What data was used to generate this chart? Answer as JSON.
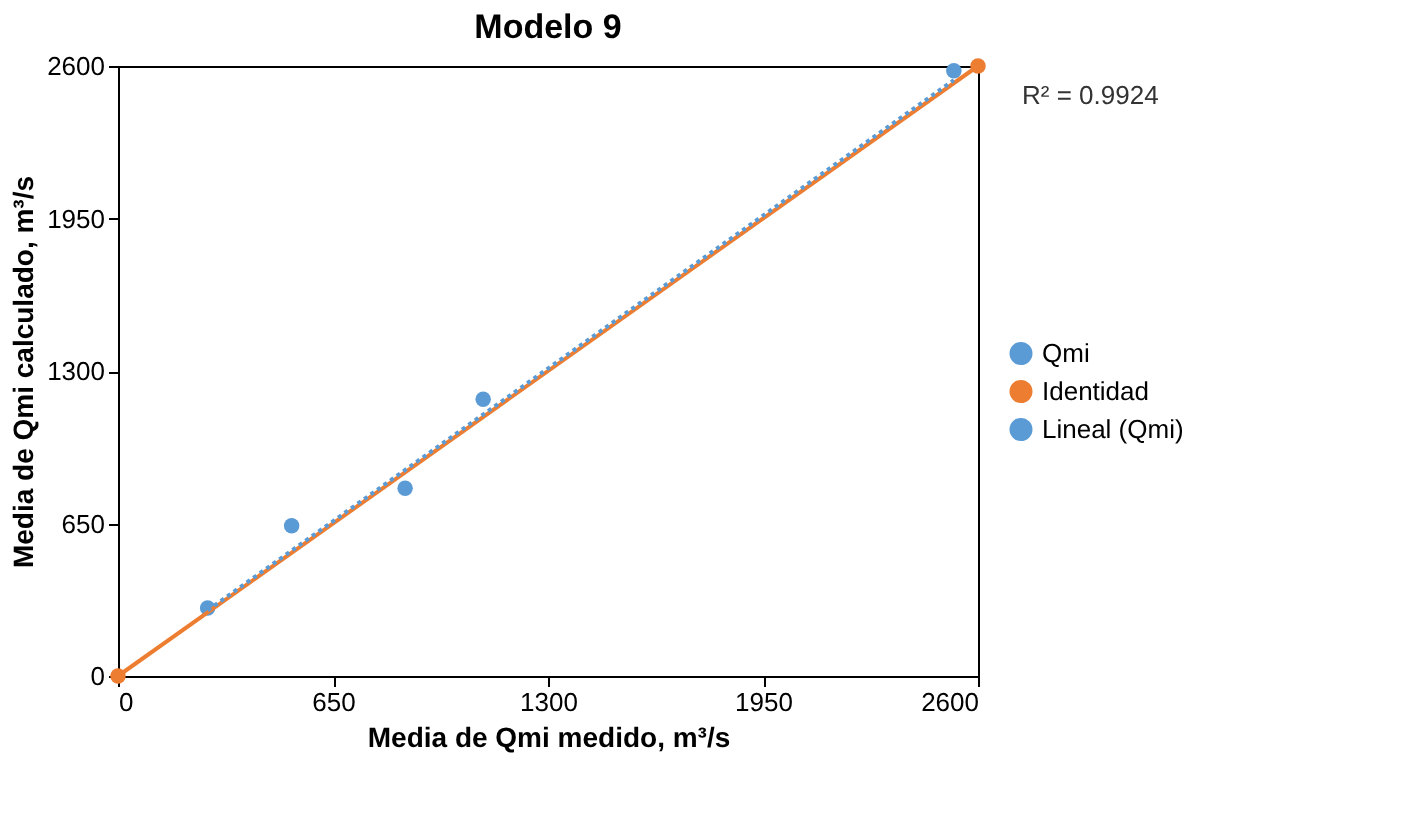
{
  "chart_data": {
    "type": "scatter",
    "title": "Modelo 9",
    "xlabel": "Media de Qmi medido, m³/s",
    "ylabel": "Media de Qmi calculado, m³/s",
    "xlim": [
      0,
      2600
    ],
    "ylim": [
      0,
      2600
    ],
    "xticks": [
      0,
      650,
      1300,
      1950,
      2600
    ],
    "yticks": [
      0,
      650,
      1300,
      1950,
      2600
    ],
    "annotations": [
      "R² = 0.9924"
    ],
    "legend": "right",
    "grid": false,
    "series": [
      {
        "name": "Qmi",
        "color": "#5b9bd5",
        "marker": "circle",
        "x": [
          271,
          525,
          868,
          1104,
          2527
        ],
        "values": [
          290,
          640,
          800,
          1180,
          2580
        ]
      },
      {
        "name": "Identidad",
        "type": "line",
        "color": "#ed7d31",
        "marker": "circle",
        "line_style": "solid",
        "x": [
          0,
          2600
        ],
        "values": [
          0,
          2600
        ]
      },
      {
        "name": "Lineal (Qmi)",
        "type": "line",
        "color": "#5b9bd5",
        "marker": "none",
        "line_style": "dotted",
        "x": [
          271,
          2527
        ],
        "values": [
          280,
          2540
        ]
      }
    ]
  }
}
